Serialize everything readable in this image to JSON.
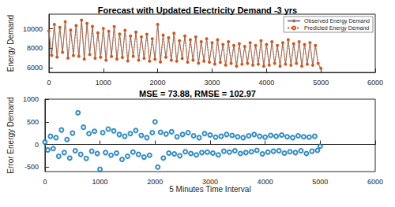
{
  "chart_data": [
    {
      "type": "line",
      "title": "Forecast with Updated Electricity Demand -3 yrs",
      "ylabel": "Energy Demand",
      "x": [
        0,
        50,
        100,
        150,
        200,
        250,
        300,
        350,
        400,
        450,
        500,
        550,
        600,
        650,
        700,
        750,
        800,
        850,
        900,
        950,
        1000,
        1050,
        1100,
        1150,
        1200,
        1250,
        1300,
        1350,
        1400,
        1450,
        1500,
        1550,
        1600,
        1650,
        1700,
        1750,
        1800,
        1850,
        1900,
        1950,
        2000,
        2050,
        2100,
        2150,
        2200,
        2250,
        2300,
        2350,
        2400,
        2450,
        2500,
        2550,
        2600,
        2650,
        2700,
        2750,
        2800,
        2850,
        2900,
        2950,
        3000,
        3050,
        3100,
        3150,
        3200,
        3250,
        3300,
        3350,
        3400,
        3450,
        3500,
        3550,
        3600,
        3650,
        3700,
        3750,
        3800,
        3850,
        3900,
        3950,
        4000,
        4050,
        4100,
        4150,
        4200,
        4250,
        4300,
        4350,
        4400,
        4450,
        4500,
        4550,
        4600,
        4650,
        4700,
        4750,
        4800,
        4850,
        4900,
        4950,
        5000
      ],
      "series": [
        {
          "name": "Observed Energy Demand",
          "color": "#7f7f7f",
          "line_style": "solid",
          "values": [
            9800,
            7200,
            10500,
            7000,
            10200,
            7500,
            10800,
            6900,
            9900,
            7300,
            10400,
            7100,
            11000,
            6800,
            10600,
            7400,
            10300,
            6900,
            9600,
            7000,
            10100,
            6700,
            9800,
            7200,
            10300,
            6800,
            9500,
            7000,
            9900,
            6600,
            9300,
            7100,
            9700,
            6700,
            9200,
            6900,
            9500,
            6600,
            9000,
            6800,
            10600,
            6500,
            9400,
            7000,
            9100,
            6700,
            9600,
            6600,
            8800,
            6900,
            9300,
            6500,
            8900,
            6700,
            9200,
            6400,
            8700,
            6600,
            9000,
            6500,
            8600,
            6300,
            8900,
            6500,
            8400,
            6200,
            8700,
            6400,
            8300,
            6100,
            8500,
            6300,
            8200,
            6400,
            8600,
            6200,
            8300,
            6300,
            8800,
            6100,
            8400,
            6200,
            8700,
            6400,
            8300,
            6100,
            8600,
            6300,
            8900,
            6200,
            8500,
            6400,
            8700,
            6100,
            8400,
            6300,
            8600,
            6200,
            8300,
            6400,
            5900
          ]
        },
        {
          "name": "Predicted Energy Demand",
          "color": "#d95319",
          "line_style": "dotted",
          "marker": "circle",
          "values": [
            9750,
            7260,
            10440,
            7080,
            10150,
            7560,
            10720,
            6980,
            9860,
            7250,
            10330,
            7170,
            10900,
            6870,
            10540,
            7350,
            10250,
            6960,
            9570,
            7060,
            10030,
            6760,
            9740,
            7150,
            10220,
            6870,
            9460,
            7040,
            9840,
            6670,
            9250,
            7160,
            9650,
            6760,
            9160,
            6950,
            9440,
            6660,
            8960,
            6850,
            10450,
            6580,
            9350,
            7060,
            9060,
            6750,
            9540,
            6660,
            8770,
            6940,
            9250,
            6560,
            8860,
            6750,
            9150,
            6460,
            8670,
            6650,
            8960,
            6550,
            8560,
            6350,
            8860,
            6540,
            8370,
            6250,
            8660,
            6440,
            8270,
            6150,
            8460,
            6340,
            8170,
            6440,
            8560,
            6250,
            8270,
            6340,
            8760,
            6150,
            8370,
            6250,
            8660,
            6430,
            8270,
            6150,
            8560,
            6340,
            8860,
            6240,
            8460,
            6430,
            8660,
            6150,
            8370,
            6340,
            8570,
            6240,
            8270,
            6430,
            5930
          ]
        }
      ],
      "xlim": [
        0,
        6000
      ],
      "xticks": [
        0,
        1000,
        2000,
        3000,
        4000,
        5000,
        6000
      ],
      "ylim": [
        5500,
        11500
      ],
      "yticks": [
        6000,
        8000,
        10000
      ],
      "legend": "northeast",
      "grid": false
    },
    {
      "type": "scatter",
      "title": "MSE = 73.88, RMSE = 102.97",
      "xlabel": "5 Minutes Time Interval",
      "ylabel": "Error Energy Demand",
      "x": [
        0,
        50,
        100,
        150,
        200,
        250,
        300,
        350,
        400,
        450,
        500,
        550,
        600,
        650,
        700,
        750,
        800,
        850,
        900,
        950,
        1000,
        1050,
        1100,
        1150,
        1200,
        1250,
        1300,
        1350,
        1400,
        1450,
        1500,
        1550,
        1600,
        1650,
        1700,
        1750,
        1800,
        1850,
        1900,
        1950,
        2000,
        2050,
        2100,
        2150,
        2200,
        2250,
        2300,
        2350,
        2400,
        2450,
        2500,
        2550,
        2600,
        2650,
        2700,
        2750,
        2800,
        2850,
        2900,
        2950,
        3000,
        3050,
        3100,
        3150,
        3200,
        3250,
        3300,
        3350,
        3400,
        3450,
        3500,
        3550,
        3600,
        3650,
        3700,
        3750,
        3800,
        3850,
        3900,
        3950,
        4000,
        4050,
        4100,
        4150,
        4200,
        4250,
        4300,
        4350,
        4400,
        4450,
        4500,
        4550,
        4600,
        4650,
        4700,
        4750,
        4800,
        4850,
        4900,
        4950,
        5000
      ],
      "values": [
        50,
        -120,
        180,
        -90,
        150,
        -260,
        320,
        -180,
        110,
        -300,
        250,
        -140,
        700,
        -220,
        380,
        -310,
        240,
        -150,
        290,
        -200,
        -550,
        260,
        -180,
        340,
        -240,
        300,
        -190,
        220,
        -330,
        180,
        -260,
        240,
        -170,
        310,
        -220,
        200,
        -280,
        150,
        -240,
        260,
        500,
        -500,
        270,
        -300,
        230,
        -190,
        280,
        -210,
        170,
        -250,
        220,
        -160,
        260,
        -200,
        190,
        -230,
        150,
        -180,
        240,
        -170,
        210,
        -190,
        160,
        -230,
        180,
        -150,
        220,
        -170,
        200,
        -140,
        170,
        -200,
        150,
        -180,
        190,
        -160,
        220,
        -130,
        180,
        -210,
        160,
        -170,
        200,
        -150,
        180,
        -140,
        210,
        -190,
        170,
        -160,
        150,
        -180,
        190,
        -140,
        170,
        -200,
        160,
        -150,
        180,
        -130,
        -40
      ],
      "color": "#0072bd",
      "marker": "circle",
      "xlim": [
        0,
        6000
      ],
      "xticks": [
        0,
        1000,
        2000,
        3000,
        4000,
        5000,
        6000
      ],
      "ylim": [
        -600,
        1000
      ],
      "yticks": [
        -500,
        0,
        500,
        1000
      ],
      "grid": false
    }
  ]
}
